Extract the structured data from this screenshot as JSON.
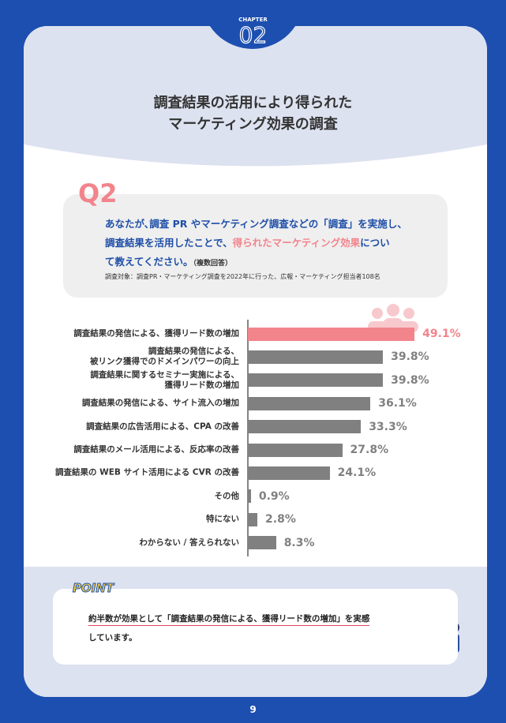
{
  "header": {
    "chapter_label": "CHAPTER",
    "chapter_number": "02",
    "title_line1": "調査結果の活用により得られた",
    "title_line2": "マーケティング効果の調査"
  },
  "question": {
    "number": "Q2",
    "line1": "あなたが､調査 PR やマーケティング調査などの「調査」を実施し、",
    "line2_before": "調査結果を活用したことで、",
    "highlight": "得られたマーケティング効果",
    "line2_after": "につい",
    "line3": "て教えてください。",
    "note": "（複数回答）",
    "subject": "調査対象：調査PR・マーケティング調査を2022年に行った、広報・マーケティング担当者108名"
  },
  "chart_data": {
    "type": "bar",
    "orientation": "horizontal",
    "categories": [
      "調査結果の発信による、獲得リード数の増加",
      "調査結果の発信による、\n被リンク獲得でのドメインパワーの向上",
      "調査結果に関するセミナー実施による、\n獲得リード数の増加",
      "調査結果の発信による、サイト流入の増加",
      "調査結果の広告活用による、CPA の改善",
      "調査結果のメール活用による、反応率の改善",
      "調査結果の WEB サイト活用による CVR の改善",
      "その他",
      "特にない",
      "わからない / 答えられない"
    ],
    "values": [
      49.1,
      39.8,
      39.8,
      36.1,
      33.3,
      27.8,
      24.1,
      0.9,
      2.8,
      8.3
    ],
    "value_labels": [
      "49.1%",
      "39.8%",
      "39.8%",
      "36.1%",
      "33.3%",
      "27.8%",
      "24.1%",
      "0.9%",
      "2.8%",
      "8.3%"
    ],
    "colors": [
      "#f2848c",
      "#808080",
      "#808080",
      "#808080",
      "#808080",
      "#808080",
      "#808080",
      "#808080",
      "#808080",
      "#808080"
    ]
  },
  "point": {
    "badge": "POINT",
    "line1": "約半数が効果として「調査結果の発信による、獲得リード数の増加」を実感",
    "line2": "しています。"
  },
  "page_number": "9"
}
